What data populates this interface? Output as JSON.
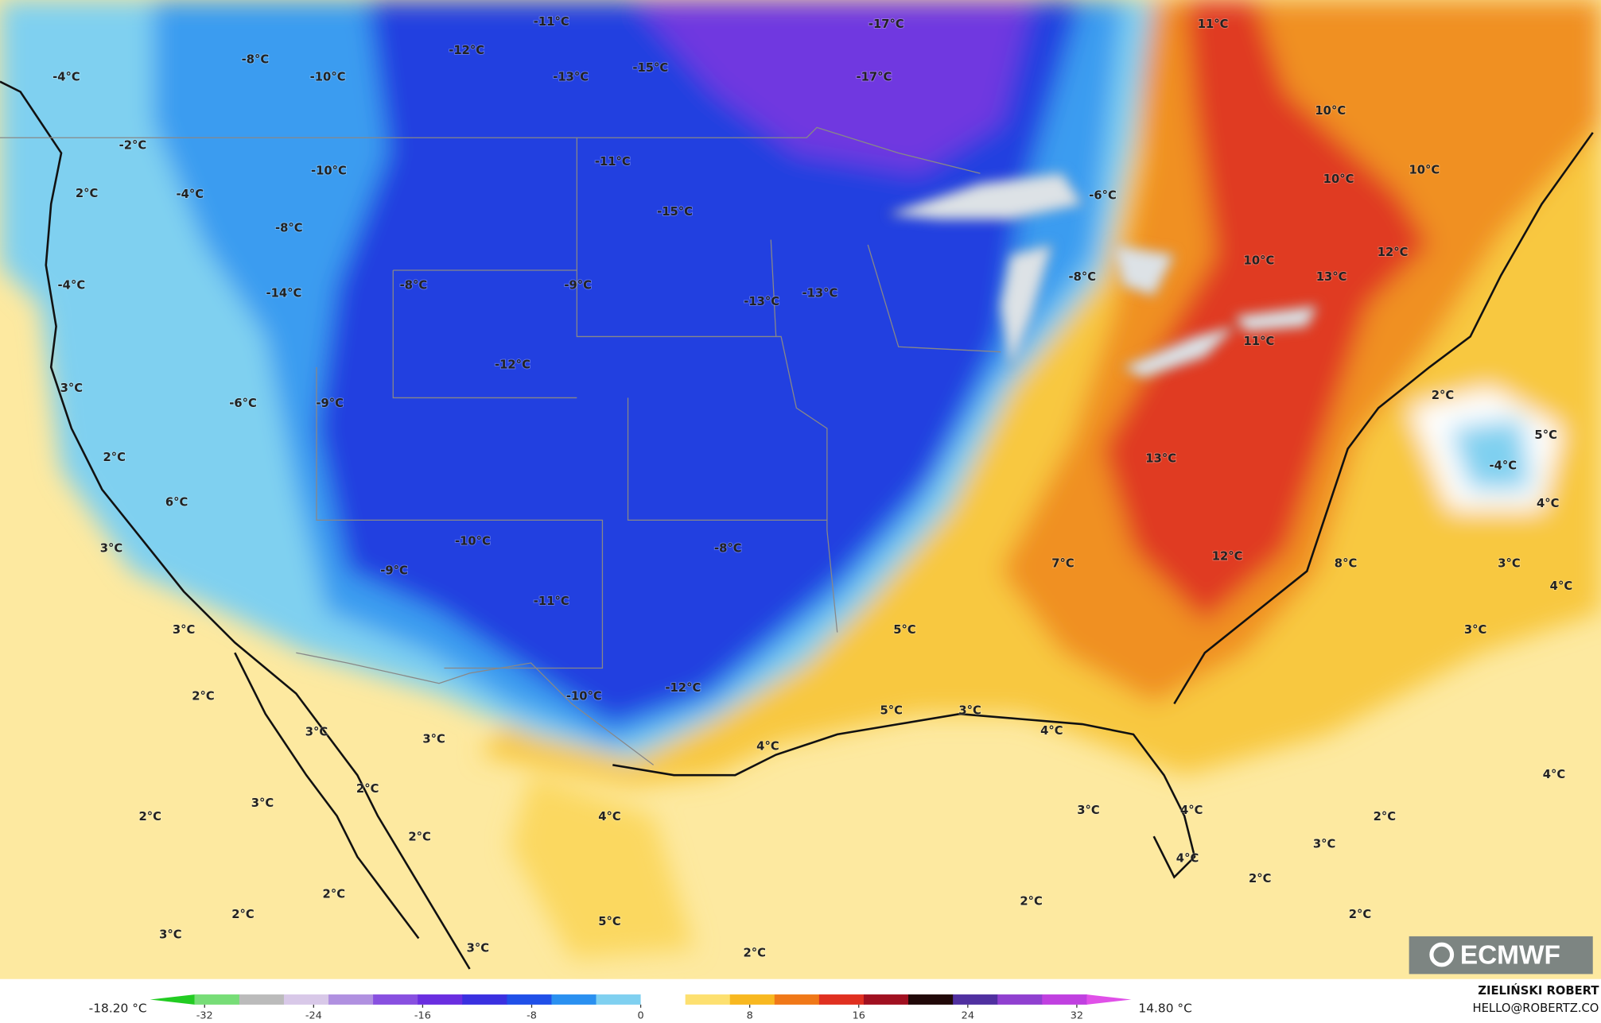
{
  "map": {
    "labels": [
      "-11°C",
      "-17°C",
      "11°C",
      "-4°C",
      "-8°C",
      "-10°C",
      "-12°C",
      "-13°C",
      "-15°C",
      "-17°C",
      "10°C",
      "-2°C",
      "-10°C",
      "-11°C",
      "10°C",
      "10°C",
      "-4°C",
      "2°C",
      "-6°C",
      "-15°C",
      "-8°C",
      "12°C",
      "10°C",
      "-4°C",
      "-8°C",
      "-9°C",
      "13°C",
      "-8°C",
      "-14°C",
      "-13°C",
      "-13°C",
      "11°C",
      "-12°C",
      "3°C",
      "2°C",
      "-6°C",
      "-9°C",
      "5°C",
      "2°C",
      "13°C",
      "-4°C",
      "6°C",
      "4°C",
      "3°C",
      "-10°C",
      "-8°C",
      "7°C",
      "12°C",
      "8°C",
      "3°C",
      "-9°C",
      "4°C",
      "-11°C",
      "3°C",
      "5°C",
      "3°C",
      "2°C",
      "-10°C",
      "-12°C",
      "5°C",
      "3°C",
      "3°C",
      "3°C",
      "4°C",
      "4°C",
      "4°C",
      "2°C",
      "3°C",
      "4°C",
      "3°C",
      "4°C",
      "2°C",
      "2°C",
      "2°C",
      "3°C",
      "4°C",
      "2°C",
      "2°C",
      "2°C",
      "2°C",
      "2°C",
      "3°C",
      "5°C",
      "3°C",
      "2°C"
    ],
    "colorbar": {
      "min_label": "-18.20 °C",
      "max_label": "14.80 °C",
      "lim": [
        -36,
        36
      ],
      "ticks": [
        -32,
        -24,
        -16,
        -8,
        0,
        8,
        16,
        24,
        32
      ],
      "colors": [
        "#22cc22",
        "#77dd77",
        "#bbbbbb",
        "#d8c8e8",
        "#b090e0",
        "#8850e0",
        "#6a2ee0",
        "#3a30e0",
        "#2050e8",
        "#2a90f0",
        "#7fd0f0",
        "#ffffff",
        "#fde070",
        "#f8b820",
        "#f07818",
        "#e03020",
        "#a01020",
        "#200808",
        "#5030a0",
        "#9040d0",
        "#c040e0",
        "#e050e8"
      ]
    },
    "credit": {
      "author": "ZIELIŃSKI ROBERT",
      "email": "HELLO@ROBERTZ.CO"
    },
    "logo": "ECMWF"
  }
}
